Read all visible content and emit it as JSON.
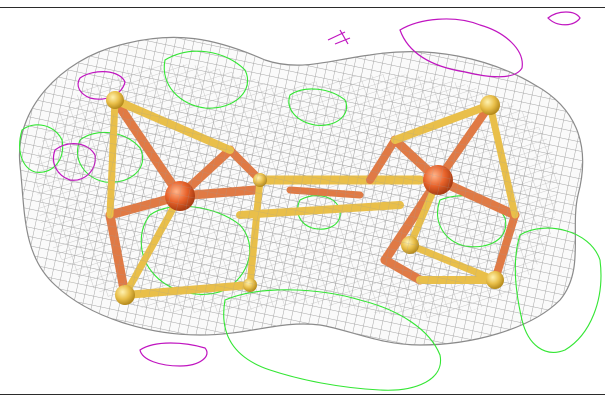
{
  "figure": {
    "subject": "",
    "colors": {
      "background": "#ffffff",
      "density_mesh_gray": "#9a9a9a",
      "difference_positive_green": "#33e633",
      "difference_negative_magenta": "#c014c0",
      "iron_atoms": "#e8622a",
      "iron_bonds": "#e07a45",
      "sulfur_atoms_and_bonds": "#e9bf4a"
    }
  }
}
